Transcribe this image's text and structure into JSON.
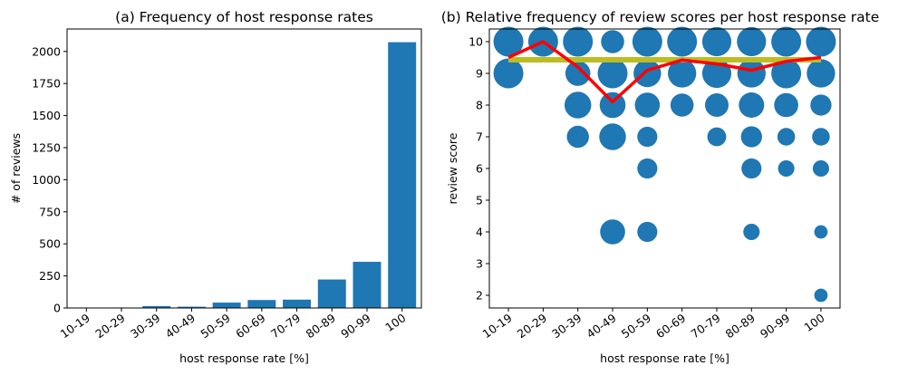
{
  "chart_data": [
    {
      "type": "bar",
      "title": "(a) Frequency of host response rates",
      "xlabel": "host response rate [%]",
      "ylabel": "# of reviews",
      "categories": [
        "10-19",
        "20-29",
        "30-39",
        "40-49",
        "50-59",
        "60-69",
        "70-79",
        "80-89",
        "90-99",
        "100"
      ],
      "values": [
        2,
        1,
        15,
        10,
        42,
        62,
        65,
        222,
        360,
        2072
      ],
      "ylim": [
        0,
        2175
      ],
      "yticks": [
        0,
        250,
        500,
        750,
        1000,
        1250,
        1500,
        1750,
        2000
      ],
      "color": "#1f77b4",
      "grid": false
    },
    {
      "type": "scatter",
      "title": "(b) Relative frequency of review scores per host response rate",
      "xlabel": "host response rate [%]",
      "ylabel": "review score",
      "categories": [
        "10-19",
        "20-29",
        "30-39",
        "40-49",
        "50-59",
        "60-69",
        "70-79",
        "80-89",
        "90-99",
        "100"
      ],
      "ylim": [
        1.6,
        10.4
      ],
      "yticks": [
        2,
        3,
        4,
        5,
        6,
        7,
        8,
        9,
        10
      ],
      "color": "#1f77b4",
      "grid": false,
      "points": [
        {
          "x": "10-19",
          "y": 10,
          "size": 1.0
        },
        {
          "x": "10-19",
          "y": 9,
          "size": 1.0
        },
        {
          "x": "20-29",
          "y": 10,
          "size": 1.0
        },
        {
          "x": "30-39",
          "y": 10,
          "size": 1.0
        },
        {
          "x": "30-39",
          "y": 9,
          "size": 0.7
        },
        {
          "x": "30-39",
          "y": 8,
          "size": 0.8
        },
        {
          "x": "30-39",
          "y": 7,
          "size": 0.55
        },
        {
          "x": "40-49",
          "y": 10,
          "size": 0.6
        },
        {
          "x": "40-49",
          "y": 9,
          "size": 1.0
        },
        {
          "x": "40-49",
          "y": 8,
          "size": 0.75
        },
        {
          "x": "40-49",
          "y": 7,
          "size": 0.8
        },
        {
          "x": "40-49",
          "y": 4,
          "size": 0.7
        },
        {
          "x": "50-59",
          "y": 10,
          "size": 1.0
        },
        {
          "x": "50-59",
          "y": 9,
          "size": 0.85
        },
        {
          "x": "50-59",
          "y": 8,
          "size": 0.7
        },
        {
          "x": "50-59",
          "y": 7,
          "size": 0.45
        },
        {
          "x": "50-59",
          "y": 6,
          "size": 0.45
        },
        {
          "x": "50-59",
          "y": 4,
          "size": 0.45
        },
        {
          "x": "60-69",
          "y": 10,
          "size": 1.0
        },
        {
          "x": "60-69",
          "y": 9,
          "size": 0.9
        },
        {
          "x": "60-69",
          "y": 8,
          "size": 0.6
        },
        {
          "x": "70-79",
          "y": 10,
          "size": 0.95
        },
        {
          "x": "70-79",
          "y": 9,
          "size": 0.95
        },
        {
          "x": "70-79",
          "y": 8,
          "size": 0.62
        },
        {
          "x": "70-79",
          "y": 7,
          "size": 0.4
        },
        {
          "x": "80-89",
          "y": 10,
          "size": 0.95
        },
        {
          "x": "80-89",
          "y": 9,
          "size": 0.9
        },
        {
          "x": "80-89",
          "y": 8,
          "size": 0.72
        },
        {
          "x": "80-89",
          "y": 7,
          "size": 0.5
        },
        {
          "x": "80-89",
          "y": 6,
          "size": 0.45
        },
        {
          "x": "80-89",
          "y": 4,
          "size": 0.3
        },
        {
          "x": "90-99",
          "y": 10,
          "size": 1.0
        },
        {
          "x": "90-99",
          "y": 9,
          "size": 1.0
        },
        {
          "x": "90-99",
          "y": 8,
          "size": 0.65
        },
        {
          "x": "90-99",
          "y": 7,
          "size": 0.35
        },
        {
          "x": "90-99",
          "y": 6,
          "size": 0.3
        },
        {
          "x": "100",
          "y": 10,
          "size": 1.0
        },
        {
          "x": "100",
          "y": 9,
          "size": 0.9
        },
        {
          "x": "100",
          "y": 8,
          "size": 0.5
        },
        {
          "x": "100",
          "y": 7,
          "size": 0.35
        },
        {
          "x": "100",
          "y": 6,
          "size": 0.3
        },
        {
          "x": "100",
          "y": 4,
          "size": 0.2
        },
        {
          "x": "100",
          "y": 2,
          "size": 0.2
        }
      ],
      "lines": [
        {
          "color": "#bcbd22",
          "width": 6,
          "y": [
            9.43,
            9.43,
            9.43,
            9.43,
            9.43,
            9.43,
            9.43,
            9.43,
            9.43,
            9.43
          ]
        },
        {
          "color": "#ff0000",
          "width": 3.5,
          "y": [
            9.5,
            10.0,
            9.2,
            8.1,
            9.1,
            9.42,
            9.3,
            9.1,
            9.38,
            9.5
          ]
        }
      ]
    }
  ]
}
